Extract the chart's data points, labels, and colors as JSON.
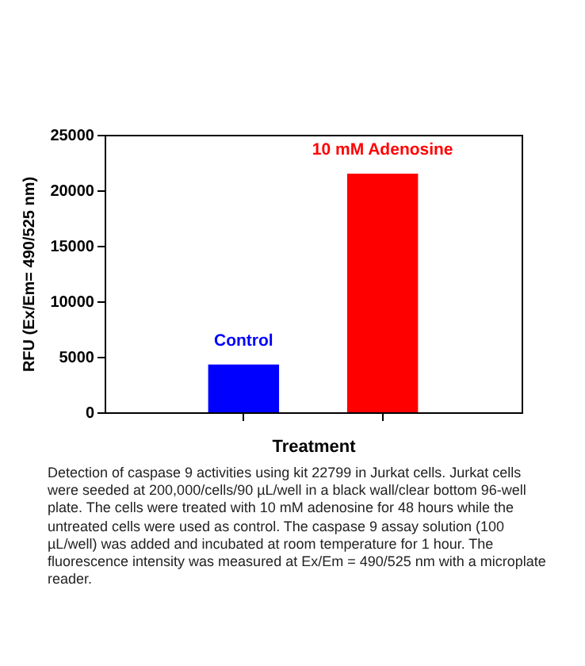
{
  "chart_data": {
    "type": "bar",
    "categories": [
      "Control",
      "10 mM Adenosine"
    ],
    "values": [
      4300,
      21500
    ],
    "colors": [
      "#0000ff",
      "#ff0000"
    ],
    "xlabel": "Treatment",
    "ylabel": "RFU (Ex/Em= 490/525 nm)",
    "ylim": [
      0,
      25000
    ],
    "yticks": [
      0,
      5000,
      10000,
      15000,
      20000,
      25000
    ],
    "tick_labels": "y",
    "grid": false,
    "annotations": [
      "Detection of caspase 9 activities using kit 22799 in Jurkat cells. Jurkat cells were seeded at 200,000/cells/90 µL/well in a black wall/clear bottom 96-well plate. The cells were treated with 10 mM adenosine for 48 hours while the untreated cells were used as control. The caspase 9 assay solution (100 µL/well) was added and incubated at room temperature for 1 hour. The fluorescence intensity was measured at Ex/Em = 490/525 nm with a microplate reader."
    ]
  }
}
